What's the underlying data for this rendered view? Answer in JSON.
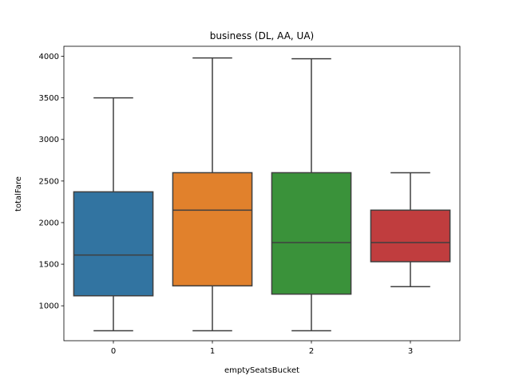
{
  "chart_data": {
    "type": "box",
    "title": "business (DL, AA, UA)",
    "xlabel": "emptySeatsBucket",
    "ylabel": "totalFare",
    "categories": [
      "0",
      "1",
      "2",
      "3"
    ],
    "ylim": [
      580,
      4120
    ],
    "yticks": [
      1000,
      1500,
      2000,
      2500,
      3000,
      3500,
      4000
    ],
    "grid": false,
    "boxes": [
      {
        "category": "0",
        "whisker_low": 700,
        "q1": 1120,
        "median": 1610,
        "q3": 2370,
        "whisker_high": 3500,
        "color": "#3274a1"
      },
      {
        "category": "1",
        "whisker_low": 700,
        "q1": 1240,
        "median": 2150,
        "q3": 2600,
        "whisker_high": 3980,
        "color": "#e1812c"
      },
      {
        "category": "2",
        "whisker_low": 700,
        "q1": 1140,
        "median": 1760,
        "q3": 2600,
        "whisker_high": 3970,
        "color": "#3a923a"
      },
      {
        "category": "3",
        "whisker_low": 1230,
        "q1": 1530,
        "median": 1760,
        "q3": 2150,
        "whisker_high": 2600,
        "color": "#c03d3e"
      }
    ]
  }
}
